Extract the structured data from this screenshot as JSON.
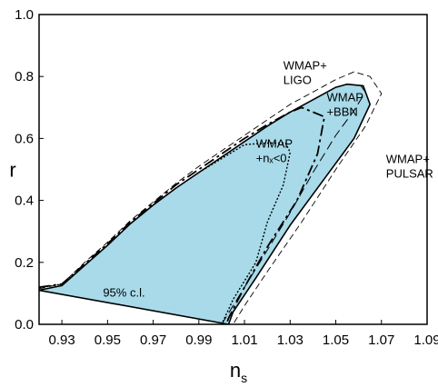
{
  "chart_data": {
    "type": "area",
    "xlabel": "n",
    "xlabel_sub": "s",
    "ylabel": "r",
    "xlim": [
      0.92,
      1.09
    ],
    "ylim": [
      0.0,
      1.0
    ],
    "xticks": [
      0.93,
      0.95,
      0.97,
      0.99,
      1.01,
      1.03,
      1.05,
      1.07,
      1.09
    ],
    "xtick_labels": [
      "0.93",
      "0.95",
      "0.97",
      "0.99",
      "1.01",
      "1.03",
      "1.05",
      "1.07",
      "1.09"
    ],
    "yticks": [
      0.0,
      0.2,
      0.4,
      0.6,
      0.8,
      1.0
    ],
    "ytick_labels": [
      "0.0",
      "0.2",
      "0.4",
      "0.6",
      "0.8",
      "1.0"
    ],
    "grid": false,
    "fill_color": "#a8dae9",
    "series": [
      {
        "name": "95% c.l.",
        "style": "filled-solid",
        "points": [
          [
            0.92,
            0.11
          ],
          [
            0.93,
            0.125
          ],
          [
            0.94,
            0.19
          ],
          [
            0.95,
            0.255
          ],
          [
            0.96,
            0.325
          ],
          [
            0.97,
            0.385
          ],
          [
            0.98,
            0.44
          ],
          [
            0.99,
            0.49
          ],
          [
            1.0,
            0.54
          ],
          [
            1.01,
            0.59
          ],
          [
            1.02,
            0.64
          ],
          [
            1.03,
            0.685
          ],
          [
            1.04,
            0.725
          ],
          [
            1.05,
            0.765
          ],
          [
            1.055,
            0.775
          ],
          [
            1.062,
            0.77
          ],
          [
            1.065,
            0.71
          ],
          [
            1.058,
            0.6
          ],
          [
            1.045,
            0.47
          ],
          [
            1.03,
            0.32
          ],
          [
            1.015,
            0.15
          ],
          [
            1.005,
            0.04
          ],
          [
            1.003,
            0.0
          ]
        ]
      },
      {
        "name": "WMAP+ LIGO",
        "style": "thin-dashed",
        "points": [
          [
            0.92,
            0.115
          ],
          [
            0.93,
            0.13
          ],
          [
            0.94,
            0.2
          ],
          [
            0.95,
            0.265
          ],
          [
            0.96,
            0.335
          ],
          [
            0.97,
            0.395
          ],
          [
            0.98,
            0.455
          ],
          [
            0.99,
            0.51
          ],
          [
            1.0,
            0.56
          ],
          [
            1.01,
            0.61
          ],
          [
            1.02,
            0.66
          ],
          [
            1.03,
            0.71
          ],
          [
            1.04,
            0.75
          ],
          [
            1.05,
            0.79
          ],
          [
            1.058,
            0.815
          ],
          [
            1.065,
            0.8
          ],
          [
            1.07,
            0.745
          ],
          [
            1.063,
            0.64
          ],
          [
            1.05,
            0.5
          ],
          [
            1.035,
            0.33
          ],
          [
            1.02,
            0.17
          ],
          [
            1.01,
            0.06
          ],
          [
            1.005,
            0.0
          ]
        ]
      },
      {
        "name": "WMAP +BBN",
        "style": "long-dashed",
        "points": [
          [
            0.92,
            0.12
          ],
          [
            0.93,
            0.13
          ],
          [
            0.94,
            0.195
          ],
          [
            0.95,
            0.26
          ],
          [
            0.96,
            0.33
          ],
          [
            0.97,
            0.39
          ],
          [
            0.98,
            0.45
          ],
          [
            0.99,
            0.5
          ],
          [
            1.0,
            0.55
          ],
          [
            1.01,
            0.6
          ],
          [
            1.02,
            0.645
          ],
          [
            1.03,
            0.685
          ],
          [
            1.035,
            0.7
          ],
          [
            1.045,
            0.67
          ],
          [
            1.042,
            0.55
          ],
          [
            1.033,
            0.4
          ],
          [
            1.02,
            0.25
          ],
          [
            1.01,
            0.12
          ],
          [
            1.003,
            0.02
          ],
          [
            1.002,
            0.0
          ]
        ]
      },
      {
        "name": "WMAP+ n_t<0",
        "style": "dotted",
        "points": [
          [
            0.92,
            0.118
          ],
          [
            0.93,
            0.13
          ],
          [
            0.94,
            0.19
          ],
          [
            0.95,
            0.255
          ],
          [
            0.96,
            0.325
          ],
          [
            0.97,
            0.385
          ],
          [
            0.98,
            0.44
          ],
          [
            0.99,
            0.49
          ],
          [
            1.0,
            0.535
          ],
          [
            1.01,
            0.58
          ],
          [
            1.02,
            0.585
          ],
          [
            1.028,
            0.585
          ],
          [
            1.03,
            0.555
          ],
          [
            1.027,
            0.45
          ],
          [
            1.02,
            0.33
          ],
          [
            1.015,
            0.2
          ],
          [
            1.005,
            0.08
          ],
          [
            1.0,
            0.0
          ]
        ]
      },
      {
        "name": "WMAP+ PULSAR",
        "style": "medium-dashed",
        "points": [
          [
            1.0,
            0.0
          ],
          [
            1.01,
            0.12
          ],
          [
            1.02,
            0.24
          ],
          [
            1.03,
            0.36
          ],
          [
            1.04,
            0.49
          ],
          [
            1.05,
            0.61
          ],
          [
            1.058,
            0.69
          ],
          [
            1.063,
            0.75
          ],
          [
            1.06,
            0.78
          ]
        ]
      }
    ],
    "annotations": [
      {
        "lines": [
          "WMAP+",
          "LIGO"
        ],
        "at": [
          1.027,
          0.822
        ]
      },
      {
        "lines": [
          "WMAP",
          "+BBN"
        ],
        "at": [
          1.046,
          0.72
        ]
      },
      {
        "lines": [
          "WMAP",
          "+nₓ<0"
        ],
        "at": [
          1.015,
          0.57
        ]
      },
      {
        "lines": [
          "WMAP+",
          "PULSAR"
        ],
        "at": [
          1.072,
          0.52
        ]
      },
      {
        "lines": [
          "95% c.l."
        ],
        "at": [
          0.948,
          0.09
        ]
      }
    ]
  }
}
